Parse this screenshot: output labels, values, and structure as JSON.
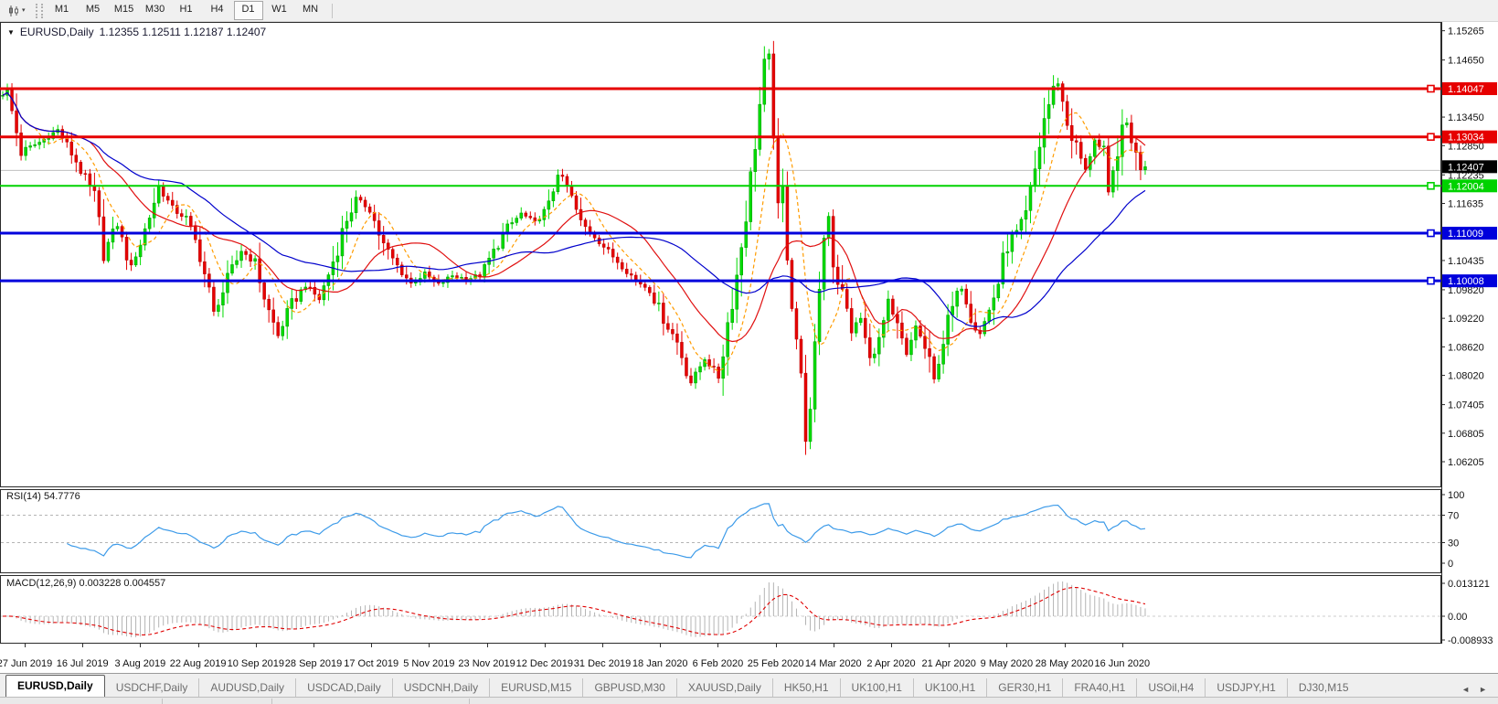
{
  "icons": {
    "title_dropdown": "▼",
    "toolbar_caret": "▾",
    "tabs_scroll_left": "◄",
    "tabs_scroll_right": "►"
  },
  "toolbar": {
    "timeframes": [
      "M1",
      "M5",
      "M15",
      "M30",
      "H1",
      "H4",
      "D1",
      "W1",
      "MN"
    ],
    "active_timeframe": "D1"
  },
  "chart": {
    "symbol_title": "EURUSD,Daily",
    "ohlc_text": "1.12355 1.12511 1.12187 1.12407"
  },
  "price_axis": {
    "ticks": [
      1.15265,
      1.1465,
      1.1345,
      1.1285,
      1.12235,
      1.11635,
      1.10435,
      1.0982,
      1.0922,
      1.0862,
      1.0802,
      1.07405,
      1.06805,
      1.06205
    ]
  },
  "levels": [
    {
      "label": "1.14047",
      "value": 1.14047,
      "color": "#e60000",
      "width": 3
    },
    {
      "label": "1.13034",
      "value": 1.13034,
      "color": "#e60000",
      "width": 3
    },
    {
      "label": "1.12004",
      "value": 1.12004,
      "color": "#00d200",
      "width": 2
    },
    {
      "label": "1.11009",
      "value": 1.11009,
      "color": "#0000dc",
      "width": 3
    },
    {
      "label": "1.10008",
      "value": 1.10008,
      "color": "#0000dc",
      "width": 3
    }
  ],
  "current_price": {
    "label": "1.12407",
    "value": 1.12407,
    "line_color": "#c0c0c0",
    "label_bg": "#000000"
  },
  "indicators": {
    "rsi": {
      "label": "RSI(14) 54.7776",
      "period": 14,
      "value": 54.7776,
      "line_color": "#3d9be9",
      "axis": [
        {
          "text": "100",
          "value": 100,
          "dashed": false
        },
        {
          "text": "70",
          "value": 70,
          "dashed": true
        },
        {
          "text": "30",
          "value": 30,
          "dashed": true
        },
        {
          "text": "0",
          "value": 0,
          "dashed": false
        }
      ]
    },
    "macd": {
      "label": "MACD(12,26,9) 0.003228 0.004557",
      "fast": 12,
      "slow": 26,
      "signal": 9,
      "macd_value": 0.003228,
      "signal_value": 0.004557,
      "hist_color": "#b4b4b4",
      "signal_color": "#e00000",
      "axis_top": "0.013121",
      "axis_zero": "0.00",
      "axis_bottom": "-0.008933"
    }
  },
  "chart_data": {
    "type": "candlestick",
    "symbol": "EURUSD",
    "timeframe": "Daily",
    "title": "EURUSD,Daily 1.12355 1.12511 1.12187 1.12407",
    "ohlc": {
      "open": 1.12355,
      "high": 1.12511,
      "low": 1.12187,
      "close": 1.12407
    },
    "ylim": [
      1.0567,
      1.1545
    ],
    "price_clamp": [
      1.0635,
      1.1505
    ],
    "x_labels": [
      "27 Jun 2019",
      "16 Jul 2019",
      "3 Aug 2019",
      "22 Aug 2019",
      "10 Sep 2019",
      "28 Sep 2019",
      "17 Oct 2019",
      "5 Nov 2019",
      "23 Nov 2019",
      "12 Dec 2019",
      "31 Dec 2019",
      "18 Jan 2020",
      "6 Feb 2020",
      "25 Feb 2020",
      "14 Mar 2020",
      "2 Apr 2020",
      "21 Apr 2020",
      "9 May 2020",
      "28 May 2020",
      "16 Jun 2020"
    ],
    "candle_count": 250,
    "bull_color": "#00dc00",
    "bull_edge": "#009600",
    "bear_color": "#e60000",
    "bear_edge": "#b40000",
    "moving_averages": [
      {
        "period": 8,
        "color": "#ff9c00",
        "dashed": true
      },
      {
        "period": 20,
        "color": "#e01010",
        "dashed": false
      },
      {
        "period": 40,
        "color": "#0000cc",
        "dashed": false
      }
    ],
    "price_waypoints": [
      [
        0,
        1.139
      ],
      [
        2,
        1.1398
      ],
      [
        5,
        1.1272
      ],
      [
        9,
        1.1292
      ],
      [
        13,
        1.1318
      ],
      [
        17,
        1.1252
      ],
      [
        21,
        1.1175
      ],
      [
        23,
        1.1062
      ],
      [
        26,
        1.1118
      ],
      [
        29,
        1.1028
      ],
      [
        32,
        1.1108
      ],
      [
        35,
        1.1198
      ],
      [
        38,
        1.1152
      ],
      [
        41,
        1.1132
      ],
      [
        44,
        1.1058
      ],
      [
        47,
        1.093
      ],
      [
        50,
        1.1002
      ],
      [
        53,
        1.1065
      ],
      [
        56,
        1.1038
      ],
      [
        59,
        1.0935
      ],
      [
        61,
        1.0885
      ],
      [
        64,
        1.0952
      ],
      [
        67,
        1.0992
      ],
      [
        70,
        1.0962
      ],
      [
        73,
        1.1042
      ],
      [
        76,
        1.1132
      ],
      [
        78,
        1.1172
      ],
      [
        81,
        1.1152
      ],
      [
        84,
        1.1075
      ],
      [
        87,
        1.1032
      ],
      [
        90,
        1.0995
      ],
      [
        93,
        1.1015
      ],
      [
        96,
        1.0992
      ],
      [
        99,
        1.1012
      ],
      [
        102,
        1.1005
      ],
      [
        105,
        1.1012
      ],
      [
        108,
        1.1062
      ],
      [
        111,
        1.1112
      ],
      [
        114,
        1.1142
      ],
      [
        117,
        1.1122
      ],
      [
        120,
        1.1158
      ],
      [
        122,
        1.1232
      ],
      [
        124,
        1.1198
      ],
      [
        127,
        1.1122
      ],
      [
        130,
        1.1095
      ],
      [
        133,
        1.1062
      ],
      [
        136,
        1.1032
      ],
      [
        139,
        1.1002
      ],
      [
        142,
        1.0982
      ],
      [
        145,
        1.0922
      ],
      [
        148,
        1.0872
      ],
      [
        151,
        1.0788
      ],
      [
        154,
        1.0838
      ],
      [
        157,
        1.0798
      ],
      [
        159,
        1.0912
      ],
      [
        161,
        1.1012
      ],
      [
        163,
        1.1142
      ],
      [
        165,
        1.1292
      ],
      [
        167,
        1.1448
      ],
      [
        168,
        1.1468
      ],
      [
        169,
        1.1318
      ],
      [
        170,
        1.1142
      ],
      [
        171,
        1.1188
      ],
      [
        172,
        1.1062
      ],
      [
        173,
        1.0958
      ],
      [
        174,
        1.0882
      ],
      [
        175,
        1.0792
      ],
      [
        176,
        1.0682
      ],
      [
        177,
        1.0722
      ],
      [
        178,
        1.0852
      ],
      [
        179,
        1.0992
      ],
      [
        180,
        1.1092
      ],
      [
        181,
        1.1142
      ],
      [
        182,
        1.1038
      ],
      [
        184,
        1.0972
      ],
      [
        186,
        1.0898
      ],
      [
        188,
        1.0922
      ],
      [
        190,
        1.0832
      ],
      [
        192,
        1.0872
      ],
      [
        194,
        1.0952
      ],
      [
        196,
        1.0902
      ],
      [
        198,
        1.0842
      ],
      [
        200,
        1.0908
      ],
      [
        202,
        1.0858
      ],
      [
        204,
        1.0792
      ],
      [
        206,
        1.0878
      ],
      [
        208,
        1.0942
      ],
      [
        210,
        1.0988
      ],
      [
        212,
        1.0928
      ],
      [
        214,
        1.0892
      ],
      [
        216,
        1.0938
      ],
      [
        218,
        1.0998
      ],
      [
        220,
        1.1078
      ],
      [
        222,
        1.1102
      ],
      [
        224,
        1.1138
      ],
      [
        226,
        1.1232
      ],
      [
        228,
        1.1342
      ],
      [
        230,
        1.1402
      ],
      [
        231,
        1.1418
      ],
      [
        233,
        1.1332
      ],
      [
        235,
        1.1282
      ],
      [
        237,
        1.1232
      ],
      [
        239,
        1.1302
      ],
      [
        241,
        1.1262
      ],
      [
        242,
        1.1178
      ],
      [
        244,
        1.1282
      ],
      [
        246,
        1.1332
      ],
      [
        248,
        1.1262
      ],
      [
        249,
        1.1241
      ]
    ]
  },
  "bottom_tabs": {
    "tabs": [
      {
        "label": "EURUSD,Daily",
        "active": true
      },
      {
        "label": "USDCHF,Daily",
        "active": false
      },
      {
        "label": "AUDUSD,Daily",
        "active": false
      },
      {
        "label": "USDCAD,Daily",
        "active": false
      },
      {
        "label": "USDCNH,Daily",
        "active": false
      },
      {
        "label": "EURUSD,M15",
        "active": false
      },
      {
        "label": "GBPUSD,M30",
        "active": false
      },
      {
        "label": "XAUUSD,Daily",
        "active": false
      },
      {
        "label": "HK50,H1",
        "active": false
      },
      {
        "label": "UK100,H1",
        "active": false
      },
      {
        "label": "UK100,H1",
        "active": false
      },
      {
        "label": "GER30,H1",
        "active": false
      },
      {
        "label": "FRA40,H1",
        "active": false
      },
      {
        "label": "USOil,H4",
        "active": false
      },
      {
        "label": "USDJPY,H1",
        "active": false
      },
      {
        "label": "DJ30,M15",
        "active": false
      }
    ]
  }
}
